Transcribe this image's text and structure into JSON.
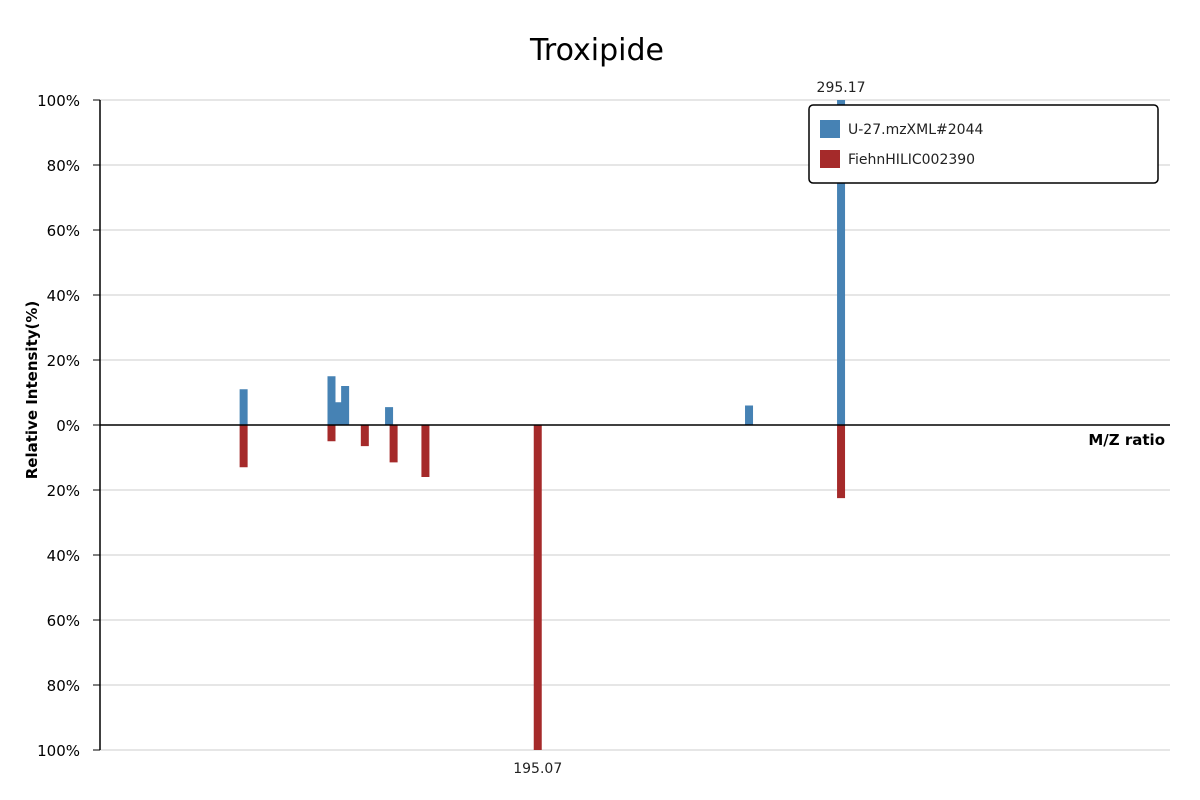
{
  "chart_data": {
    "type": "bar",
    "title": "Troxipide",
    "xlabel": "M/Z ratio",
    "ylabel": "Relative Intensity(%)",
    "y_ticks_top": [
      "100%",
      "80%",
      "60%",
      "40%",
      "20%",
      "0%"
    ],
    "y_ticks_bottom": [
      "20%",
      "40%",
      "60%",
      "80%",
      "100%"
    ],
    "ylim_top": [
      0,
      100
    ],
    "ylim_bottom": [
      0,
      100
    ],
    "grid": true,
    "legend_position": "top-right",
    "colors": {
      "top": "#4682b4",
      "bottom": "#a52a2a"
    },
    "series": [
      {
        "name": "U-27.mzXML#2044",
        "direction": "up",
        "peaks": [
          {
            "mz": 98.0,
            "intensity": 11
          },
          {
            "mz": 127.0,
            "intensity": 15
          },
          {
            "mz": 129.0,
            "intensity": 7
          },
          {
            "mz": 131.5,
            "intensity": 12
          },
          {
            "mz": 146.0,
            "intensity": 5.5
          },
          {
            "mz": 264.8,
            "intensity": 6
          },
          {
            "mz": 295.17,
            "intensity": 100,
            "label": "295.17"
          }
        ]
      },
      {
        "name": "FiehnHILIC002390",
        "direction": "down",
        "peaks": [
          {
            "mz": 98.0,
            "intensity": 13
          },
          {
            "mz": 127.0,
            "intensity": 5
          },
          {
            "mz": 138.0,
            "intensity": 6.5
          },
          {
            "mz": 147.5,
            "intensity": 11.5
          },
          {
            "mz": 158.0,
            "intensity": 16
          },
          {
            "mz": 195.07,
            "intensity": 100,
            "label": "195.07"
          },
          {
            "mz": 295.17,
            "intensity": 22.5
          }
        ]
      }
    ]
  }
}
